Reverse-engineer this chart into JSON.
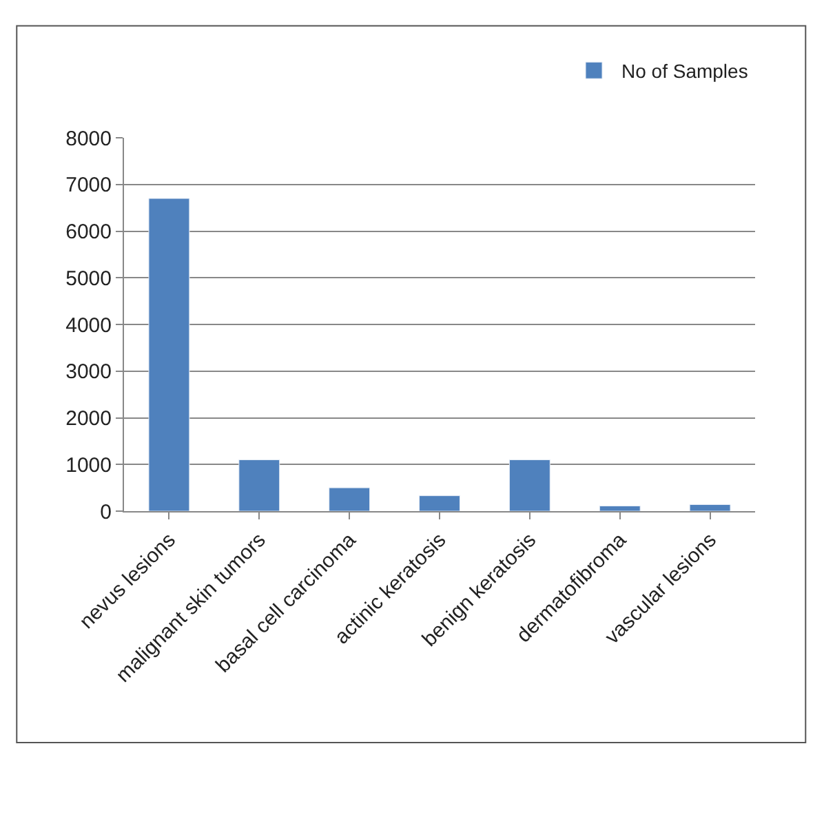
{
  "chart_data": {
    "type": "bar",
    "categories": [
      "nevus lesions",
      "malignant skin tumors",
      "basal cell carcinoma",
      "actinic keratosis",
      "benign keratosis",
      "dermatofibroma",
      "vascular lesions"
    ],
    "series": [
      {
        "name": "No of Samples",
        "color": "#4f81bd",
        "values": [
          6700,
          1100,
          500,
          330,
          1100,
          110,
          140
        ]
      }
    ],
    "ylim": [
      0,
      8000
    ],
    "yticks": [
      0,
      1000,
      2000,
      3000,
      4000,
      5000,
      6000,
      7000,
      8000
    ],
    "grid": "y",
    "legend": "top right"
  }
}
